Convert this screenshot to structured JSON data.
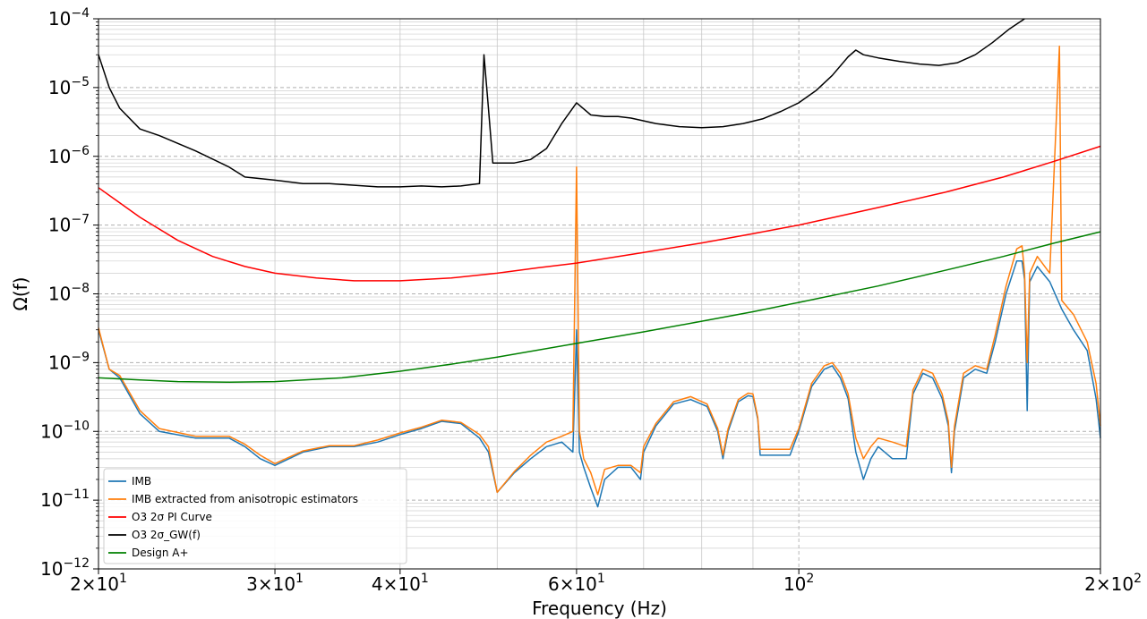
{
  "chart_data": {
    "type": "line",
    "x_scale": "log",
    "y_scale": "log",
    "xlim": [
      20,
      200
    ],
    "ylim": [
      1e-12,
      0.0001
    ],
    "grid": true,
    "legend_position": "lower-left",
    "xlabel": "Frequency (Hz)",
    "ylabel": "Ω(f)",
    "x_ticks": [
      {
        "value": 20,
        "base": "2×10",
        "exp": "1"
      },
      {
        "value": 30,
        "base": "3×10",
        "exp": "1"
      },
      {
        "value": 40,
        "base": "4×10",
        "exp": "1"
      },
      {
        "value": 60,
        "base": "6×10",
        "exp": "1"
      },
      {
        "value": 100,
        "base": "10",
        "exp": "2"
      },
      {
        "value": 200,
        "base": "2×10",
        "exp": "2"
      }
    ],
    "y_ticks": [
      {
        "value": 1e-12,
        "base": "10",
        "exp": "−12"
      },
      {
        "value": 1e-11,
        "base": "10",
        "exp": "−11"
      },
      {
        "value": 1e-10,
        "base": "10",
        "exp": "−10"
      },
      {
        "value": 1e-09,
        "base": "10",
        "exp": "−9"
      },
      {
        "value": 1e-08,
        "base": "10",
        "exp": "−8"
      },
      {
        "value": 1e-07,
        "base": "10",
        "exp": "−7"
      },
      {
        "value": 1e-06,
        "base": "10",
        "exp": "−6"
      },
      {
        "value": 1e-05,
        "base": "10",
        "exp": "−5"
      },
      {
        "value": 0.0001,
        "base": "10",
        "exp": "−4"
      }
    ],
    "series": [
      {
        "name": "IMB",
        "color": "#1f77b4",
        "points": [
          [
            20,
            3e-09
          ],
          [
            20.5,
            8e-10
          ],
          [
            21,
            6e-10
          ],
          [
            22,
            1.8e-10
          ],
          [
            23,
            1e-10
          ],
          [
            25,
            8e-11
          ],
          [
            27,
            8e-11
          ],
          [
            28,
            6e-11
          ],
          [
            29,
            4e-11
          ],
          [
            30,
            3.2e-11
          ],
          [
            32,
            5e-11
          ],
          [
            34,
            6e-11
          ],
          [
            36,
            6e-11
          ],
          [
            38,
            7e-11
          ],
          [
            40,
            9e-11
          ],
          [
            42,
            1.1e-10
          ],
          [
            44,
            1.4e-10
          ],
          [
            46,
            1.3e-10
          ],
          [
            48,
            8e-11
          ],
          [
            49,
            5e-11
          ],
          [
            50,
            1.3e-11
          ],
          [
            52,
            2.5e-11
          ],
          [
            54,
            4e-11
          ],
          [
            56,
            6e-11
          ],
          [
            58,
            7e-11
          ],
          [
            59.5,
            5e-11
          ],
          [
            60,
            3e-09
          ],
          [
            60.4,
            5e-11
          ],
          [
            61,
            3e-11
          ],
          [
            62,
            1.5e-11
          ],
          [
            63,
            8e-12
          ],
          [
            64,
            2e-11
          ],
          [
            66,
            3e-11
          ],
          [
            68,
            3e-11
          ],
          [
            69.5,
            2e-11
          ],
          [
            70,
            5e-11
          ],
          [
            72,
            1.2e-10
          ],
          [
            75,
            2.5e-10
          ],
          [
            78,
            2.9e-10
          ],
          [
            81,
            2.3e-10
          ],
          [
            83,
            1e-10
          ],
          [
            84,
            4e-11
          ],
          [
            85,
            1e-10
          ],
          [
            87,
            2.7e-10
          ],
          [
            89,
            3.3e-10
          ],
          [
            90,
            3.2e-10
          ],
          [
            91,
            1.5e-10
          ],
          [
            91.5,
            4.5e-11
          ],
          [
            94,
            4.5e-11
          ],
          [
            98,
            4.5e-11
          ],
          [
            100,
            1e-10
          ],
          [
            103,
            4.5e-10
          ],
          [
            106,
            8e-10
          ],
          [
            108,
            9e-10
          ],
          [
            110,
            6e-10
          ],
          [
            112,
            3e-10
          ],
          [
            114,
            5e-11
          ],
          [
            116,
            2e-11
          ],
          [
            118,
            4e-11
          ],
          [
            120,
            6e-11
          ],
          [
            124,
            4e-11
          ],
          [
            128,
            4e-11
          ],
          [
            130,
            3.5e-10
          ],
          [
            133,
            7e-10
          ],
          [
            136,
            6e-10
          ],
          [
            139,
            3e-10
          ],
          [
            141,
            1.2e-10
          ],
          [
            142,
            2.5e-11
          ],
          [
            143,
            1e-10
          ],
          [
            146,
            6e-10
          ],
          [
            150,
            8e-10
          ],
          [
            154,
            7e-10
          ],
          [
            157,
            2e-09
          ],
          [
            161,
            1e-08
          ],
          [
            165,
            3e-08
          ],
          [
            167,
            3e-08
          ],
          [
            168,
            1.6e-08
          ],
          [
            169,
            2e-10
          ],
          [
            170,
            1.5e-08
          ],
          [
            173,
            2.5e-08
          ],
          [
            178,
            1.5e-08
          ],
          [
            183,
            6e-09
          ],
          [
            188,
            3e-09
          ],
          [
            194,
            1.5e-09
          ],
          [
            198,
            3e-10
          ],
          [
            200,
            8e-11
          ]
        ]
      },
      {
        "name": "IMB extracted from anisotropic estimators",
        "color": "#ff7f0e",
        "points": [
          [
            20,
            3.2e-09
          ],
          [
            20.5,
            8e-10
          ],
          [
            21,
            6.5e-10
          ],
          [
            22,
            2e-10
          ],
          [
            23,
            1.1e-10
          ],
          [
            25,
            8.5e-11
          ],
          [
            27,
            8.5e-11
          ],
          [
            28,
            6.5e-11
          ],
          [
            29,
            4.5e-11
          ],
          [
            30,
            3.4e-11
          ],
          [
            32,
            5.2e-11
          ],
          [
            34,
            6.2e-11
          ],
          [
            36,
            6.2e-11
          ],
          [
            38,
            7.5e-11
          ],
          [
            40,
            9.5e-11
          ],
          [
            42,
            1.15e-10
          ],
          [
            44,
            1.45e-10
          ],
          [
            46,
            1.35e-10
          ],
          [
            48,
            9e-11
          ],
          [
            49,
            6e-11
          ],
          [
            50,
            1.3e-11
          ],
          [
            52,
            2.6e-11
          ],
          [
            54,
            4.5e-11
          ],
          [
            56,
            7e-11
          ],
          [
            58,
            8.5e-11
          ],
          [
            59.5,
            1e-10
          ],
          [
            60,
            7e-07
          ],
          [
            60.4,
            1e-10
          ],
          [
            61,
            4e-11
          ],
          [
            62,
            2.5e-11
          ],
          [
            63,
            1.2e-11
          ],
          [
            64,
            2.8e-11
          ],
          [
            66,
            3.2e-11
          ],
          [
            68,
            3.2e-11
          ],
          [
            69.5,
            2.5e-11
          ],
          [
            70,
            6e-11
          ],
          [
            72,
            1.3e-10
          ],
          [
            75,
            2.7e-10
          ],
          [
            78,
            3.2e-10
          ],
          [
            81,
            2.5e-10
          ],
          [
            83,
            1.1e-10
          ],
          [
            84,
            4.5e-11
          ],
          [
            85,
            1.1e-10
          ],
          [
            87,
            2.9e-10
          ],
          [
            89,
            3.6e-10
          ],
          [
            90,
            3.5e-10
          ],
          [
            91,
            1.6e-10
          ],
          [
            91.5,
            5.5e-11
          ],
          [
            94,
            5.5e-11
          ],
          [
            98,
            5.5e-11
          ],
          [
            100,
            1.1e-10
          ],
          [
            103,
            5e-10
          ],
          [
            106,
            9e-10
          ],
          [
            108,
            1e-09
          ],
          [
            110,
            7e-10
          ],
          [
            112,
            3.5e-10
          ],
          [
            114,
            8e-11
          ],
          [
            116,
            4e-11
          ],
          [
            118,
            6e-11
          ],
          [
            120,
            8e-11
          ],
          [
            124,
            7e-11
          ],
          [
            128,
            6e-11
          ],
          [
            130,
            4e-10
          ],
          [
            133,
            8e-10
          ],
          [
            136,
            7e-10
          ],
          [
            139,
            3.5e-10
          ],
          [
            141,
            1.4e-10
          ],
          [
            142,
            3e-11
          ],
          [
            143,
            1.2e-10
          ],
          [
            146,
            7e-10
          ],
          [
            150,
            9e-10
          ],
          [
            154,
            8e-10
          ],
          [
            157,
            2.5e-09
          ],
          [
            161,
            1.3e-08
          ],
          [
            165,
            4.5e-08
          ],
          [
            167,
            5e-08
          ],
          [
            168,
            2e-08
          ],
          [
            169,
            1e-09
          ],
          [
            170,
            2e-08
          ],
          [
            173,
            3.5e-08
          ],
          [
            178,
            2e-08
          ],
          [
            182,
            4e-05
          ],
          [
            183,
            8e-09
          ],
          [
            188,
            5e-09
          ],
          [
            194,
            2e-09
          ],
          [
            198,
            5e-10
          ],
          [
            200,
            1.2e-10
          ]
        ]
      },
      {
        "name": "O3 2σ PI Curve",
        "color": "#ff0000",
        "points": [
          [
            20,
            3.5e-07
          ],
          [
            22,
            1.3e-07
          ],
          [
            24,
            6e-08
          ],
          [
            26,
            3.5e-08
          ],
          [
            28,
            2.5e-08
          ],
          [
            30,
            2e-08
          ],
          [
            33,
            1.7e-08
          ],
          [
            36,
            1.55e-08
          ],
          [
            40,
            1.55e-08
          ],
          [
            45,
            1.7e-08
          ],
          [
            50,
            2e-08
          ],
          [
            55,
            2.4e-08
          ],
          [
            60,
            2.8e-08
          ],
          [
            70,
            4e-08
          ],
          [
            80,
            5.5e-08
          ],
          [
            90,
            7.5e-08
          ],
          [
            100,
            1e-07
          ],
          [
            120,
            1.8e-07
          ],
          [
            140,
            3e-07
          ],
          [
            160,
            5e-07
          ],
          [
            180,
            8.5e-07
          ],
          [
            200,
            1.4e-06
          ]
        ]
      },
      {
        "name": "O3 2σ_GW(f)",
        "color": "#000000",
        "points": [
          [
            20,
            3e-05
          ],
          [
            20.5,
            1e-05
          ],
          [
            21,
            5e-06
          ],
          [
            22,
            2.5e-06
          ],
          [
            23,
            2e-06
          ],
          [
            25,
            1.2e-06
          ],
          [
            27,
            7e-07
          ],
          [
            28,
            5e-07
          ],
          [
            30,
            4.5e-07
          ],
          [
            32,
            4e-07
          ],
          [
            34,
            4e-07
          ],
          [
            36,
            3.8e-07
          ],
          [
            38,
            3.6e-07
          ],
          [
            40,
            3.6e-07
          ],
          [
            42,
            3.7e-07
          ],
          [
            44,
            3.6e-07
          ],
          [
            46,
            3.7e-07
          ],
          [
            48,
            4e-07
          ],
          [
            48.5,
            3e-05
          ],
          [
            49,
            5e-06
          ],
          [
            49.5,
            8e-07
          ],
          [
            52,
            8e-07
          ],
          [
            54,
            9e-07
          ],
          [
            56,
            1.3e-06
          ],
          [
            58,
            3e-06
          ],
          [
            60,
            6e-06
          ],
          [
            62,
            4e-06
          ],
          [
            64,
            3.8e-06
          ],
          [
            66,
            3.8e-06
          ],
          [
            68,
            3.6e-06
          ],
          [
            72,
            3e-06
          ],
          [
            76,
            2.7e-06
          ],
          [
            80,
            2.6e-06
          ],
          [
            84,
            2.7e-06
          ],
          [
            88,
            3e-06
          ],
          [
            92,
            3.5e-06
          ],
          [
            96,
            4.5e-06
          ],
          [
            100,
            6e-06
          ],
          [
            104,
            9e-06
          ],
          [
            108,
            1.5e-05
          ],
          [
            112,
            2.8e-05
          ],
          [
            114,
            3.5e-05
          ],
          [
            116,
            3e-05
          ],
          [
            120,
            2.7e-05
          ],
          [
            126,
            2.4e-05
          ],
          [
            132,
            2.2e-05
          ],
          [
            138,
            2.1e-05
          ],
          [
            144,
            2.3e-05
          ],
          [
            150,
            3e-05
          ],
          [
            156,
            4.5e-05
          ],
          [
            162,
            7e-05
          ],
          [
            168,
            0.0001
          ]
        ]
      },
      {
        "name": "Design A+",
        "color": "#008000",
        "points": [
          [
            20,
            6e-10
          ],
          [
            22,
            5.6e-10
          ],
          [
            24,
            5.3e-10
          ],
          [
            27,
            5.2e-10
          ],
          [
            30,
            5.3e-10
          ],
          [
            35,
            6e-10
          ],
          [
            40,
            7.5e-10
          ],
          [
            45,
            9.5e-10
          ],
          [
            50,
            1.2e-09
          ],
          [
            60,
            1.9e-09
          ],
          [
            70,
            2.8e-09
          ],
          [
            80,
            4e-09
          ],
          [
            90,
            5.5e-09
          ],
          [
            100,
            7.5e-09
          ],
          [
            120,
            1.3e-08
          ],
          [
            140,
            2.2e-08
          ],
          [
            160,
            3.5e-08
          ],
          [
            180,
            5.5e-08
          ],
          [
            200,
            8e-08
          ]
        ]
      }
    ]
  }
}
